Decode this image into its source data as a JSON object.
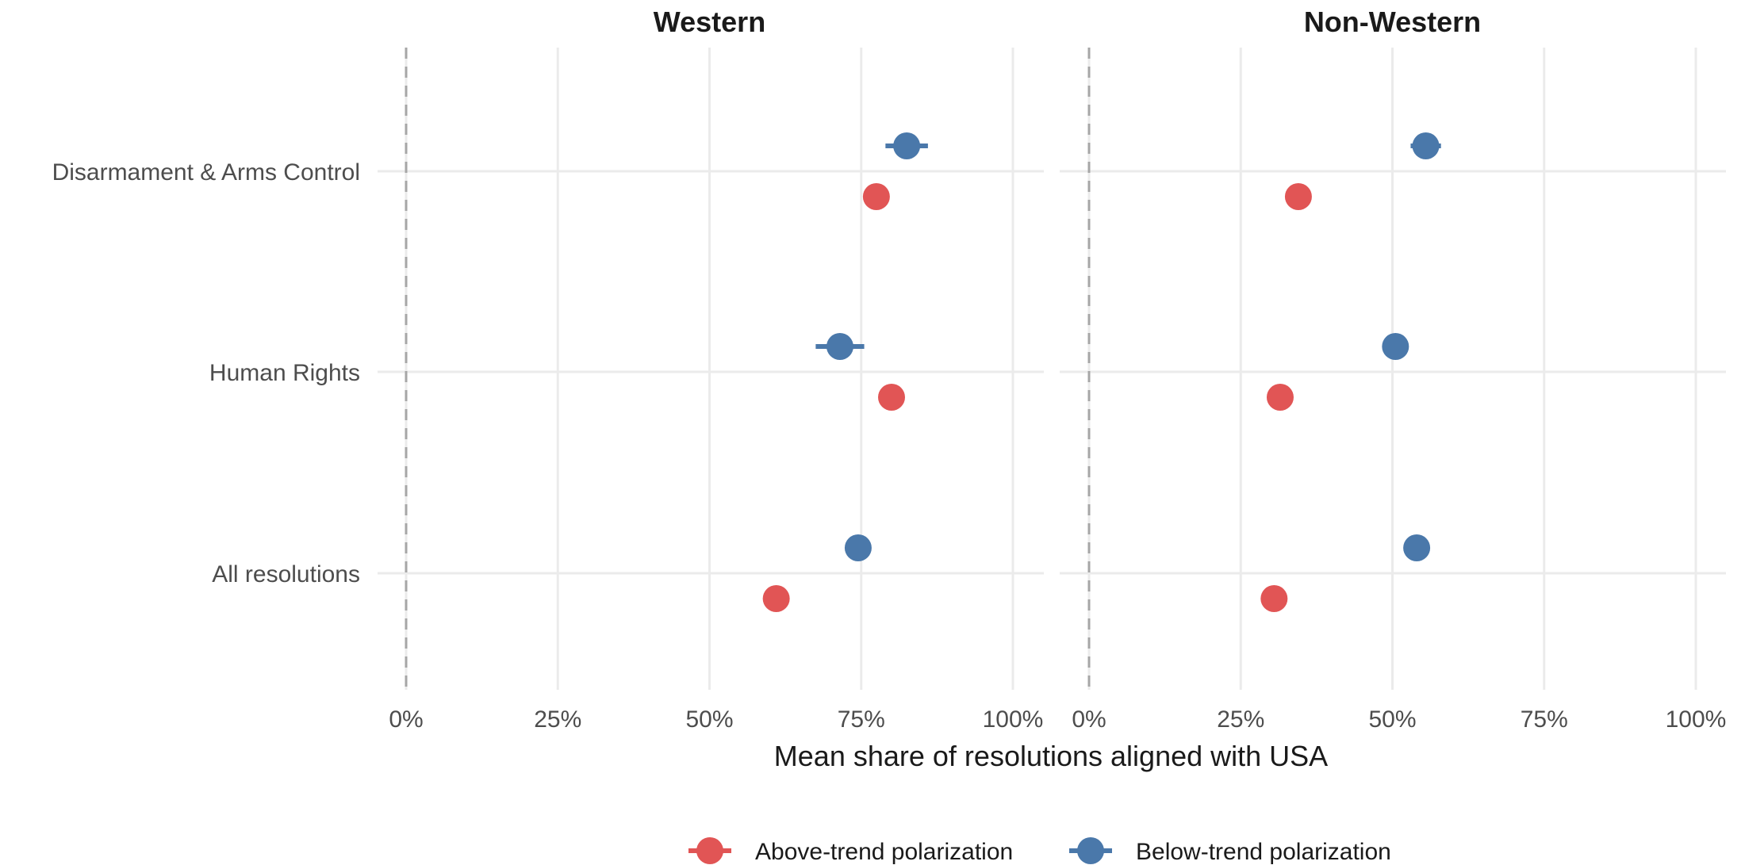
{
  "chart_data": {
    "type": "scatter",
    "facets": [
      "Western",
      "Non-Western"
    ],
    "categories": [
      "Disarmament & Arms Control",
      "Human Rights",
      "All resolutions"
    ],
    "xlabel": "Mean share of resolutions aligned with USA",
    "xlim": [
      0,
      100
    ],
    "xticks": [
      0,
      25,
      50,
      75,
      100
    ],
    "xtick_labels": [
      "0%",
      "25%",
      "50%",
      "75%",
      "100%"
    ],
    "grid": true,
    "reference_line": 0,
    "legend_position": "bottom",
    "series": [
      {
        "name": "Above-trend polarization",
        "color": "#e15555",
        "values": {
          "Western": [
            {
              "category": "Disarmament & Arms Control",
              "mean": 77.5,
              "low": 77.5,
              "high": 77.5
            },
            {
              "category": "Human Rights",
              "mean": 80,
              "low": 80,
              "high": 80
            },
            {
              "category": "All resolutions",
              "mean": 61,
              "low": 61,
              "high": 61
            }
          ],
          "Non-Western": [
            {
              "category": "Disarmament & Arms Control",
              "mean": 34.5,
              "low": 34.5,
              "high": 34.5
            },
            {
              "category": "Human Rights",
              "mean": 31.5,
              "low": 31.5,
              "high": 31.5
            },
            {
              "category": "All resolutions",
              "mean": 30.5,
              "low": 30.5,
              "high": 30.5
            }
          ]
        }
      },
      {
        "name": "Below-trend polarization",
        "color": "#4a78aa",
        "values": {
          "Western": [
            {
              "category": "Disarmament & Arms Control",
              "mean": 82.5,
              "low": 79,
              "high": 86
            },
            {
              "category": "Human Rights",
              "mean": 71.5,
              "low": 67.5,
              "high": 75.5
            },
            {
              "category": "All resolutions",
              "mean": 74.5,
              "low": 74.5,
              "high": 74.5
            }
          ],
          "Non-Western": [
            {
              "category": "Disarmament & Arms Control",
              "mean": 55.5,
              "low": 53,
              "high": 58
            },
            {
              "category": "Human Rights",
              "mean": 50.5,
              "low": 49,
              "high": 52
            },
            {
              "category": "All resolutions",
              "mean": 54,
              "low": 54,
              "high": 54
            }
          ]
        }
      }
    ]
  }
}
